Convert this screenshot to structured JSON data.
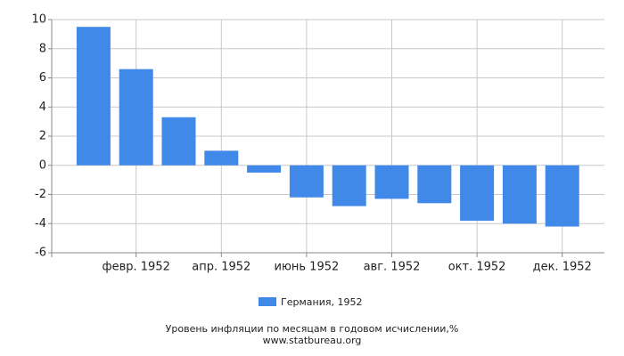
{
  "chart_data": {
    "type": "bar",
    "title": "Уровень инфляции по месяцам в годовом исчислении,%",
    "source": "www.statbureau.org",
    "categories": [
      null,
      "февр. 1952",
      null,
      "апр. 1952",
      null,
      "июнь 1952",
      null,
      "авг. 1952",
      null,
      "окт. 1952",
      null,
      "дек. 1952"
    ],
    "series": [
      {
        "name": "Германия, 1952",
        "color": "#4189e8",
        "values": [
          9.5,
          6.6,
          3.3,
          1.0,
          -0.5,
          -2.2,
          -2.8,
          -2.3,
          -2.6,
          -3.8,
          -4.0,
          -4.2
        ]
      }
    ],
    "ylim": [
      -6,
      10
    ],
    "yticks": [
      -6,
      -4,
      -2,
      0,
      2,
      4,
      6,
      8,
      10
    ],
    "grid": true
  }
}
